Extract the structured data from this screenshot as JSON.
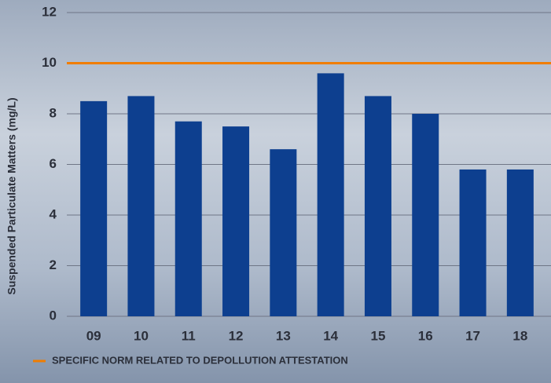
{
  "chart_data": {
    "type": "bar",
    "y_label": "Suspended Particulate Matters (mg/L)",
    "categories": [
      "09",
      "10",
      "11",
      "12",
      "13",
      "14",
      "15",
      "16",
      "17",
      "18"
    ],
    "values": [
      8.5,
      8.7,
      7.7,
      7.5,
      6.6,
      9.6,
      8.7,
      8.0,
      5.8,
      5.8
    ],
    "color": "#0d3f8f",
    "ylim": [
      0,
      12
    ],
    "yticks": [
      0,
      2,
      4,
      6,
      8,
      10,
      12
    ],
    "grid": true,
    "reference_line": {
      "value": 10,
      "label": "SPECIFIC NORM RELATED TO DEPOLLUTION ATTESTATION",
      "color": "#f07d00"
    }
  }
}
